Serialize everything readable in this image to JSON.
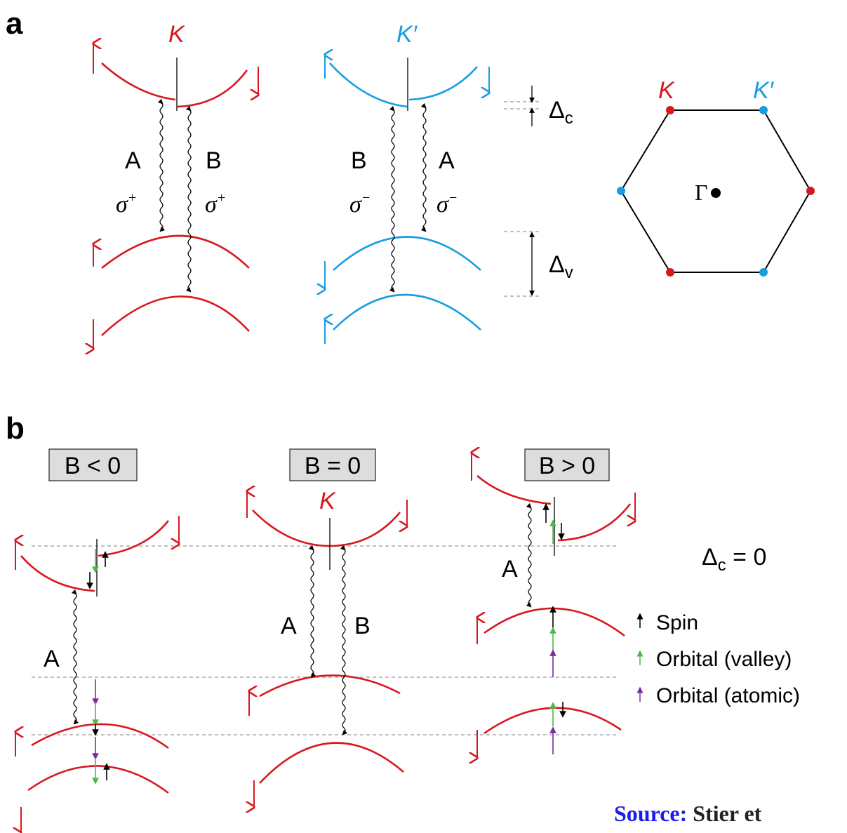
{
  "panel_a": {
    "label": "a",
    "valley_K": {
      "name": "K",
      "left": "A",
      "right": "B",
      "polarization": {
        "symbol": "σ",
        "sup": "+"
      }
    },
    "valley_K_prime": {
      "name": "K′",
      "left": "B",
      "right": "A",
      "polarization": {
        "symbol": "σ",
        "sup": "−"
      }
    },
    "delta_c": {
      "symbol": "Δ",
      "sub": "c"
    },
    "delta_v": {
      "symbol": "Δ",
      "sub": "v"
    },
    "brillouin_zone": {
      "corners": [
        "K",
        "K′"
      ],
      "center": "Γ"
    }
  },
  "panel_b": {
    "label": "b",
    "fields": [
      "B < 0",
      "B = 0",
      "B > 0"
    ],
    "valley": "K",
    "transitions": [
      "A",
      "B"
    ],
    "delta_c_zero": {
      "symbol": "Δ",
      "sub": "c",
      "rest": " = 0"
    },
    "legend": [
      "Spin",
      "Orbital (valley)",
      "Orbital (atomic)"
    ]
  },
  "source": {
    "label": "Source:",
    "text": "Stier et"
  }
}
